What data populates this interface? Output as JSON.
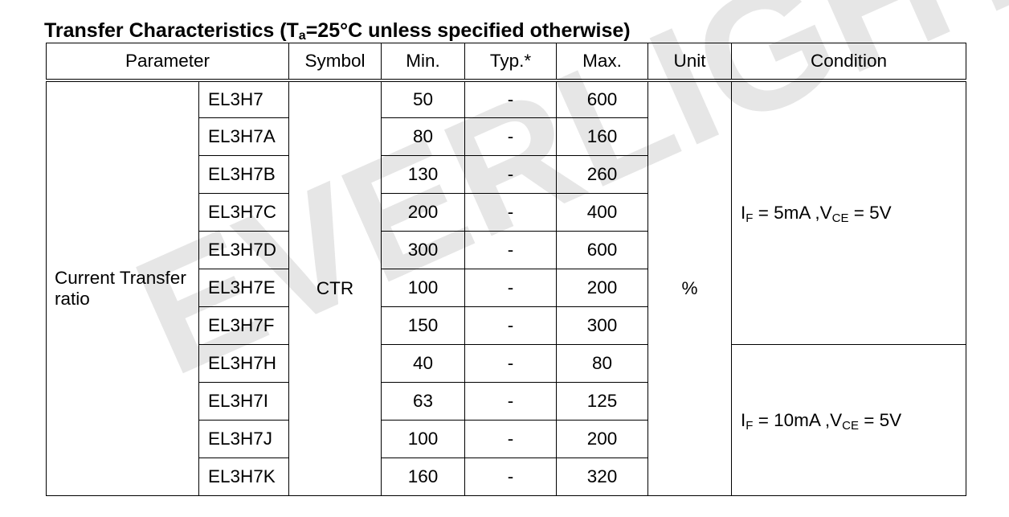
{
  "title": {
    "prefix": "Transfer Characteristics (T",
    "sub": "a",
    "suffix": "=25°C unless specified otherwise)"
  },
  "watermark": "EVERLIGHT",
  "table": {
    "headers": {
      "parameter": "Parameter",
      "symbol": "Symbol",
      "min": "Min.",
      "typ": "Typ.*",
      "max": "Max.",
      "unit": "Unit",
      "condition": "Condition"
    },
    "parameter": "Current Transfer ratio",
    "symbol": "CTR",
    "unit": "%",
    "rows": [
      {
        "part": "EL3H7",
        "min": 50,
        "typ": "-",
        "max": 600
      },
      {
        "part": "EL3H7A",
        "min": 80,
        "typ": "-",
        "max": 160
      },
      {
        "part": "EL3H7B",
        "min": 130,
        "typ": "-",
        "max": 260
      },
      {
        "part": "EL3H7C",
        "min": 200,
        "typ": "-",
        "max": 400
      },
      {
        "part": "EL3H7D",
        "min": 300,
        "typ": "-",
        "max": 600
      },
      {
        "part": "EL3H7E",
        "min": 100,
        "typ": "-",
        "max": 200
      },
      {
        "part": "EL3H7F",
        "min": 150,
        "typ": "-",
        "max": 300
      },
      {
        "part": "EL3H7H",
        "min": 40,
        "typ": "-",
        "max": 80
      },
      {
        "part": "EL3H7I",
        "min": 63,
        "typ": "-",
        "max": 125
      },
      {
        "part": "EL3H7J",
        "min": 100,
        "typ": "-",
        "max": 200
      },
      {
        "part": "EL3H7K",
        "min": 160,
        "typ": "-",
        "max": 320
      }
    ],
    "conditions": [
      {
        "i": "I",
        "i_sub": "F",
        "mid": " = 5mA ,V",
        "v_sub": "CE",
        "end": " = 5V"
      },
      {
        "i": "I",
        "i_sub": "F",
        "mid": " = 10mA ,V",
        "v_sub": "CE",
        "end": " = 5V"
      }
    ]
  },
  "colors": {
    "text": "#000000",
    "border": "#000000",
    "background": "#ffffff",
    "watermark": "#e6e6e6"
  }
}
